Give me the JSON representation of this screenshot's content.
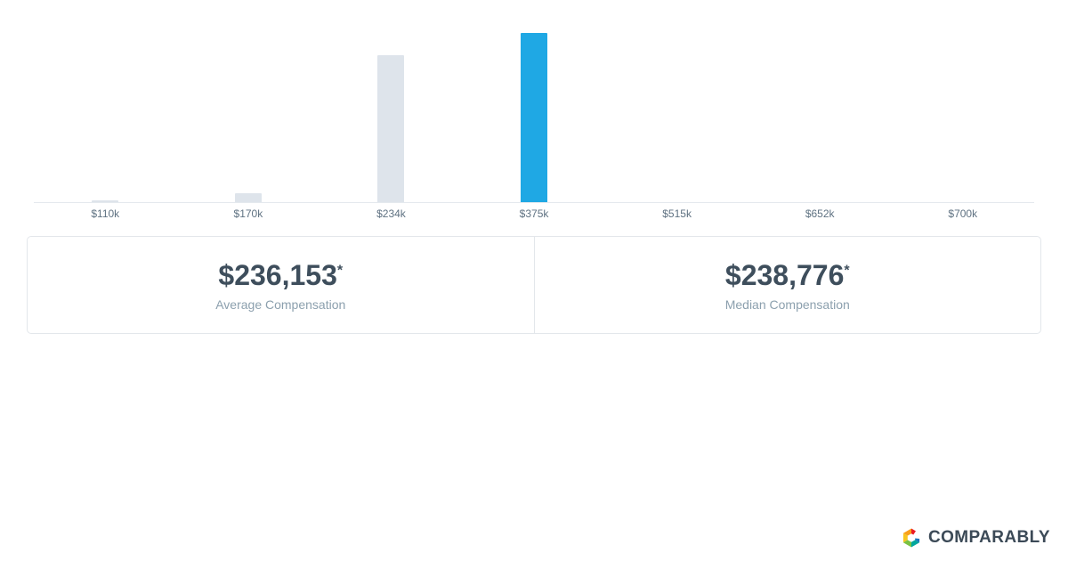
{
  "chart_data": {
    "type": "bar",
    "title": "",
    "xlabel": "",
    "ylabel": "",
    "categories": [
      "$110k",
      "$170k",
      "$234k",
      "$375k",
      "$515k",
      "$652k",
      "$700k"
    ],
    "values": [
      2,
      10,
      165,
      190,
      0,
      0,
      0
    ],
    "values_note": "no y-axis shown; values are relative bar heights in px",
    "highlighted_index": 3,
    "bar_color": "#DEE4EB",
    "highlight_color": "#1FA8E4",
    "axis_color": "#E4E9EE",
    "tick_color": "#5F7282",
    "grid": false,
    "legend": "none"
  },
  "cards": [
    {
      "value": "$236,153",
      "asterisk": "*",
      "label": "Average Compensation"
    },
    {
      "value": "$238,776",
      "asterisk": "*",
      "label": "Median Compensation"
    }
  ],
  "branding": {
    "name": "COMPARABLY"
  }
}
